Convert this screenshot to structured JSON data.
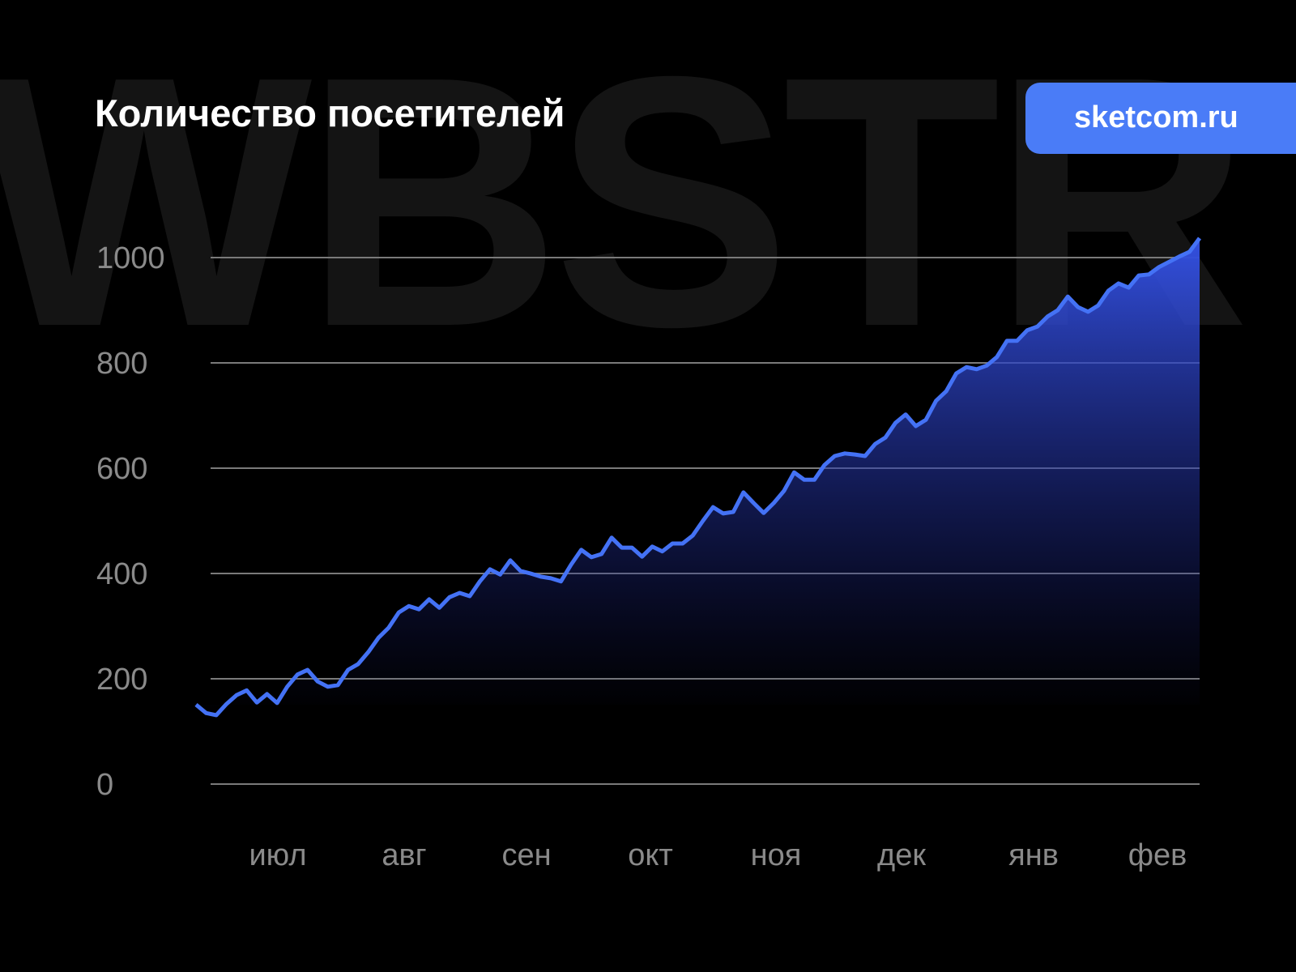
{
  "watermark": "WBSTR",
  "badge": {
    "label": "sketcom.ru",
    "color": "#4a7cf7"
  },
  "chart_data": {
    "type": "area",
    "title": "Количество посетителей",
    "xlabel": "",
    "ylabel": "",
    "ylim": [
      0,
      1000
    ],
    "yticks": [
      0,
      200,
      400,
      600,
      800,
      1000
    ],
    "xticks": [
      "июл",
      "авг",
      "сен",
      "окт",
      "ноя",
      "дек",
      "янв",
      "фев"
    ],
    "grid": true,
    "line_color": "#4472f5",
    "fill_color": "#3350e0",
    "values": [
      151,
      135,
      131,
      152,
      169,
      178,
      155,
      171,
      154,
      185,
      208,
      217,
      195,
      185,
      188,
      217,
      228,
      251,
      278,
      297,
      326,
      338,
      332,
      351,
      335,
      355,
      363,
      357,
      385,
      408,
      398,
      425,
      405,
      400,
      394,
      391,
      385,
      417,
      445,
      431,
      437,
      468,
      449,
      449,
      432,
      451,
      442,
      457,
      457,
      472,
      500,
      526,
      514,
      517,
      554,
      534,
      515,
      534,
      557,
      592,
      578,
      578,
      606,
      623,
      628,
      626,
      623,
      646,
      658,
      686,
      702,
      680,
      692,
      728,
      746,
      780,
      792,
      788,
      795,
      811,
      842,
      842,
      862,
      869,
      888,
      900,
      926,
      906,
      897,
      909,
      937,
      951,
      943,
      966,
      968,
      982,
      992,
      1002,
      1011,
      1037
    ]
  }
}
